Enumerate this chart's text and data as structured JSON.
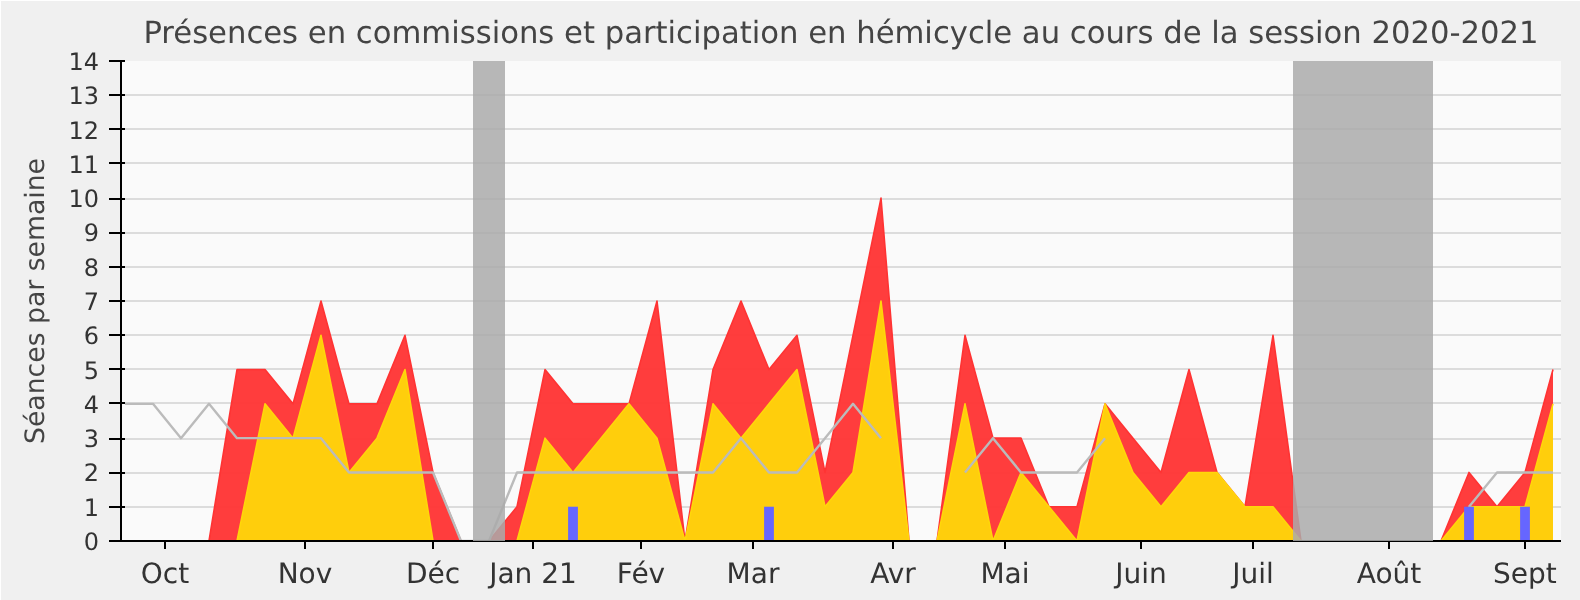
{
  "chart_data": {
    "type": "area",
    "title": "Présences en commissions et participation en hémicycle au cours de la session 2020-2021",
    "ylabel": "Séances par semaine",
    "x": [
      "2020-10-05",
      "2020-10-12",
      "2020-10-19",
      "2020-10-26",
      "2020-11-02",
      "2020-11-09",
      "2020-11-16",
      "2020-11-23",
      "2020-11-30",
      "2020-12-07",
      "2020-12-14",
      "2020-12-21",
      "2020-12-28",
      "2021-01-04",
      "2021-01-11",
      "2021-01-18",
      "2021-01-25",
      "2021-02-01",
      "2021-02-08",
      "2021-02-15",
      "2021-02-22",
      "2021-03-01",
      "2021-03-08",
      "2021-03-15",
      "2021-03-22",
      "2021-03-29",
      "2021-04-05",
      "2021-04-12",
      "2021-04-19",
      "2021-04-26",
      "2021-05-03",
      "2021-05-10",
      "2021-05-17",
      "2021-05-24",
      "2021-05-31",
      "2021-06-07",
      "2021-06-14",
      "2021-06-21",
      "2021-06-28",
      "2021-07-05",
      "2021-07-12",
      "2021-07-19",
      "2021-07-26",
      "2021-08-02",
      "2021-08-09",
      "2021-08-16",
      "2021-08-23",
      "2021-08-30",
      "2021-09-06",
      "2021-09-13",
      "2021-09-20",
      "2021-09-27"
    ],
    "series": [
      {
        "color": "#ff3333",
        "values": [
          0,
          0,
          0,
          0,
          5,
          5,
          4,
          7,
          4,
          4,
          6,
          2,
          0,
          0,
          1,
          5,
          4,
          4,
          4,
          7,
          0,
          5,
          7,
          5,
          6,
          2,
          6,
          10,
          0,
          0,
          6,
          3,
          3,
          1,
          1,
          4,
          3,
          2,
          5,
          2,
          1,
          6,
          0,
          0,
          0,
          0,
          0,
          0,
          2,
          1,
          2,
          5
        ]
      },
      {
        "type": "area",
        "color": "#ffd60a",
        "values": [
          0,
          0,
          0,
          0,
          0,
          4,
          3,
          6,
          2,
          3,
          5,
          0,
          0,
          0,
          0,
          3,
          2,
          3,
          4,
          3,
          0,
          4,
          3,
          4,
          5,
          1,
          2,
          7,
          0,
          0,
          4,
          0,
          2,
          1,
          0,
          4,
          2,
          1,
          2,
          2,
          1,
          1,
          0,
          0,
          0,
          0,
          0,
          0,
          1,
          1,
          1,
          4
        ]
      },
      {
        "type": "line",
        "color": "#bbbbbb",
        "values": [
          4,
          4,
          3,
          4,
          3,
          3,
          3,
          3,
          2,
          2,
          2,
          2,
          0,
          0,
          2,
          2,
          2,
          2,
          2,
          2,
          2,
          2,
          3,
          2,
          2,
          3,
          4,
          3,
          null,
          null,
          2,
          3,
          2,
          2,
          2,
          3,
          null,
          null,
          null,
          null,
          null,
          null,
          null,
          null,
          null,
          null,
          null,
          null,
          1,
          2,
          2,
          2
        ]
      },
      {
        "type": "bar",
        "color": "#6666ff",
        "x": [
          "2021-01-25",
          "2021-03-15",
          "2021-09-06",
          "2021-09-20"
        ],
        "values": [
          1,
          1,
          1,
          1
        ]
      }
    ],
    "xlim": [
      "2020-10-04",
      "2021-09-29"
    ],
    "ylim": [
      0,
      14
    ],
    "yticks": [
      0,
      1,
      2,
      3,
      4,
      5,
      6,
      7,
      8,
      9,
      10,
      11,
      12,
      13,
      14
    ],
    "xticks": [
      {
        "value": "2020-10-15",
        "label": "Oct"
      },
      {
        "value": "2020-11-19",
        "label": "Nov"
      },
      {
        "value": "2020-12-21",
        "label": "Déc"
      },
      {
        "value": "2021-01-15",
        "label": "Jan 21"
      },
      {
        "value": "2021-02-11",
        "label": "Fév"
      },
      {
        "value": "2021-03-11",
        "label": "Mar"
      },
      {
        "value": "2021-04-15",
        "label": "Avr"
      },
      {
        "value": "2021-05-13",
        "label": "Mai"
      },
      {
        "value": "2021-06-16",
        "label": "Juin"
      },
      {
        "value": "2021-07-14",
        "label": "Juil"
      },
      {
        "value": "2021-08-17",
        "label": "Août"
      },
      {
        "value": "2021-09-20",
        "label": "Sept"
      }
    ],
    "bands": [
      {
        "axis": "x",
        "from": "2020-12-31",
        "to": "2021-01-08",
        "color": "#aaaaaa"
      },
      {
        "axis": "x",
        "from": "2021-07-24",
        "to": "2021-08-28",
        "color": "#aaaaaa"
      }
    ],
    "grid": "y"
  }
}
